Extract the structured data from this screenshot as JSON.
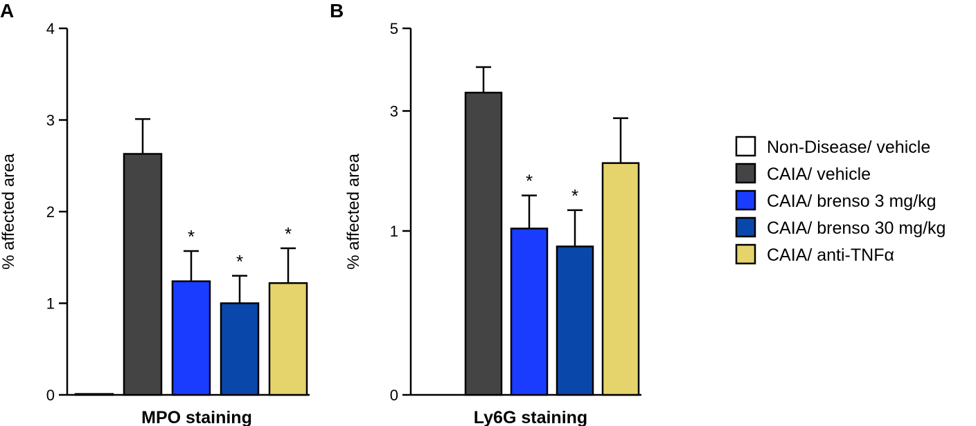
{
  "colors": {
    "non_disease": "#ffffff",
    "caia_vehicle": "#444444",
    "brenso_3": "#1a3cff",
    "brenso_30": "#0a47aa",
    "anti_tnf": "#e5d36c"
  },
  "legend": [
    {
      "label": "Non-Disease/ vehicle",
      "color_key": "non_disease"
    },
    {
      "label": "CAIA/ vehicle",
      "color_key": "caia_vehicle"
    },
    {
      "label": "CAIA/ brenso 3 mg/kg",
      "color_key": "brenso_3"
    },
    {
      "label": "CAIA/ brenso 30 mg/kg",
      "color_key": "brenso_30"
    },
    {
      "label": "CAIA/ anti-TNFα",
      "color_key": "anti_tnf"
    }
  ],
  "chart_data": [
    {
      "panel": "A",
      "type": "bar",
      "title": "",
      "xlabel": "MPO staining",
      "ylabel": "% affected area",
      "ylim": [
        0,
        4
      ],
      "yscale": "linear",
      "yticks": [
        0,
        1,
        2,
        3,
        4
      ],
      "categories": [
        "Non-Disease/ vehicle",
        "CAIA/ vehicle",
        "CAIA/ brenso 3 mg/kg",
        "CAIA/ brenso 30 mg/kg",
        "CAIA/ anti-TNFα"
      ],
      "values": [
        0.01,
        2.63,
        1.24,
        1.0,
        1.22
      ],
      "errors": [
        0,
        0.38,
        0.33,
        0.3,
        0.38
      ],
      "significance": [
        "",
        "",
        "*",
        "*",
        "*"
      ],
      "color_keys": [
        "non_disease",
        "caia_vehicle",
        "brenso_3",
        "brenso_30",
        "anti_tnf"
      ]
    },
    {
      "panel": "B",
      "type": "bar",
      "title": "",
      "xlabel": "Ly6G staining",
      "ylabel": "% affected area",
      "ylim": [
        0,
        5
      ],
      "yscale": "sqrt",
      "yticks": [
        0,
        1,
        3,
        5
      ],
      "categories": [
        "Non-Disease/ vehicle",
        "CAIA/ vehicle",
        "CAIA/ brenso 3 mg/kg",
        "CAIA/ brenso 30 mg/kg",
        "CAIA/ anti-TNFα"
      ],
      "values": [
        0.0,
        3.4,
        1.03,
        0.82,
        2.0
      ],
      "errors": [
        0,
        0.6,
        0.45,
        0.45,
        0.85
      ],
      "significance": [
        "",
        "",
        "*",
        "*",
        ""
      ],
      "color_keys": [
        "non_disease",
        "caia_vehicle",
        "brenso_3",
        "brenso_30",
        "anti_tnf"
      ]
    }
  ]
}
